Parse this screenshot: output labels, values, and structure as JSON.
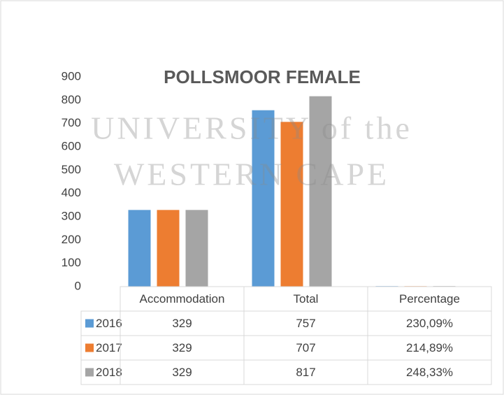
{
  "chart_data": {
    "type": "bar",
    "title": "POLLSMOOR FEMALE",
    "watermark": [
      "UNIVERSITY of the",
      "WESTERN CAPE"
    ],
    "categories": [
      "Accommodation",
      "Total",
      "Percentage"
    ],
    "series": [
      {
        "name": "2016",
        "color": "#5b9bd5",
        "values": [
          329,
          757,
          2.3009
        ],
        "value_labels": [
          "329",
          "757",
          "230,09%"
        ]
      },
      {
        "name": "2017",
        "color": "#ed7d31",
        "values": [
          329,
          707,
          2.1489
        ],
        "value_labels": [
          "329",
          "707",
          "214,89%"
        ]
      },
      {
        "name": "2018",
        "color": "#a5a5a5",
        "values": [
          329,
          817,
          2.4833
        ],
        "value_labels": [
          "329",
          "817",
          "248,33%"
        ]
      }
    ],
    "ylim": [
      0,
      900
    ],
    "yticks": [
      0,
      100,
      200,
      300,
      400,
      500,
      600,
      700,
      800,
      900
    ],
    "grid": false,
    "legend": "table"
  }
}
